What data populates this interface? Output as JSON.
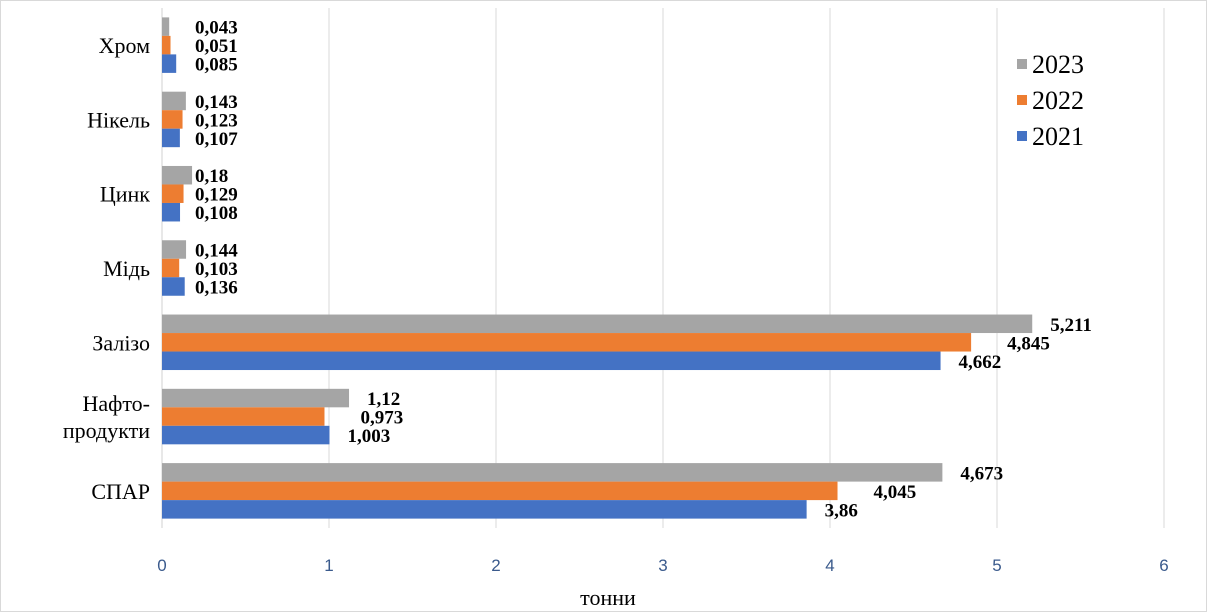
{
  "chart_data": {
    "type": "bar",
    "orientation": "horizontal",
    "title": "",
    "xlabel": "тонни",
    "ylabel": "",
    "xlim": [
      0,
      6
    ],
    "x_ticks": [
      "0",
      "1",
      "2",
      "3",
      "4",
      "5",
      "6"
    ],
    "grid": true,
    "legend_position": "top-right",
    "categories": [
      [
        "Хром"
      ],
      [
        "Нікель"
      ],
      [
        "Цинк"
      ],
      [
        "Мідь"
      ],
      [
        "Залізо"
      ],
      [
        "Нафто-",
        "продукти"
      ],
      [
        "СПАР"
      ]
    ],
    "series": [
      {
        "name": "2023",
        "color": "#a5a5a5",
        "values": [
          0.043,
          0.143,
          0.18,
          0.144,
          5.211,
          1.12,
          4.673
        ],
        "labels": [
          "0,043",
          "0,143",
          "0,18",
          "0,144",
          "5,211",
          "1,12",
          "4,673"
        ]
      },
      {
        "name": "2022",
        "color": "#ed7d31",
        "values": [
          0.051,
          0.123,
          0.129,
          0.103,
          4.845,
          0.973,
          4.045
        ],
        "labels": [
          "0,051",
          "0,123",
          "0,129",
          "0,103",
          "4,845",
          "0,973",
          "4,045"
        ]
      },
      {
        "name": "2021",
        "color": "#4472c4",
        "values": [
          0.085,
          0.107,
          0.108,
          0.136,
          4.662,
          1.003,
          3.86
        ],
        "labels": [
          "0,085",
          "0,107",
          "0,108",
          "0,136",
          "4,662",
          "1,003",
          "3,86"
        ]
      }
    ]
  }
}
